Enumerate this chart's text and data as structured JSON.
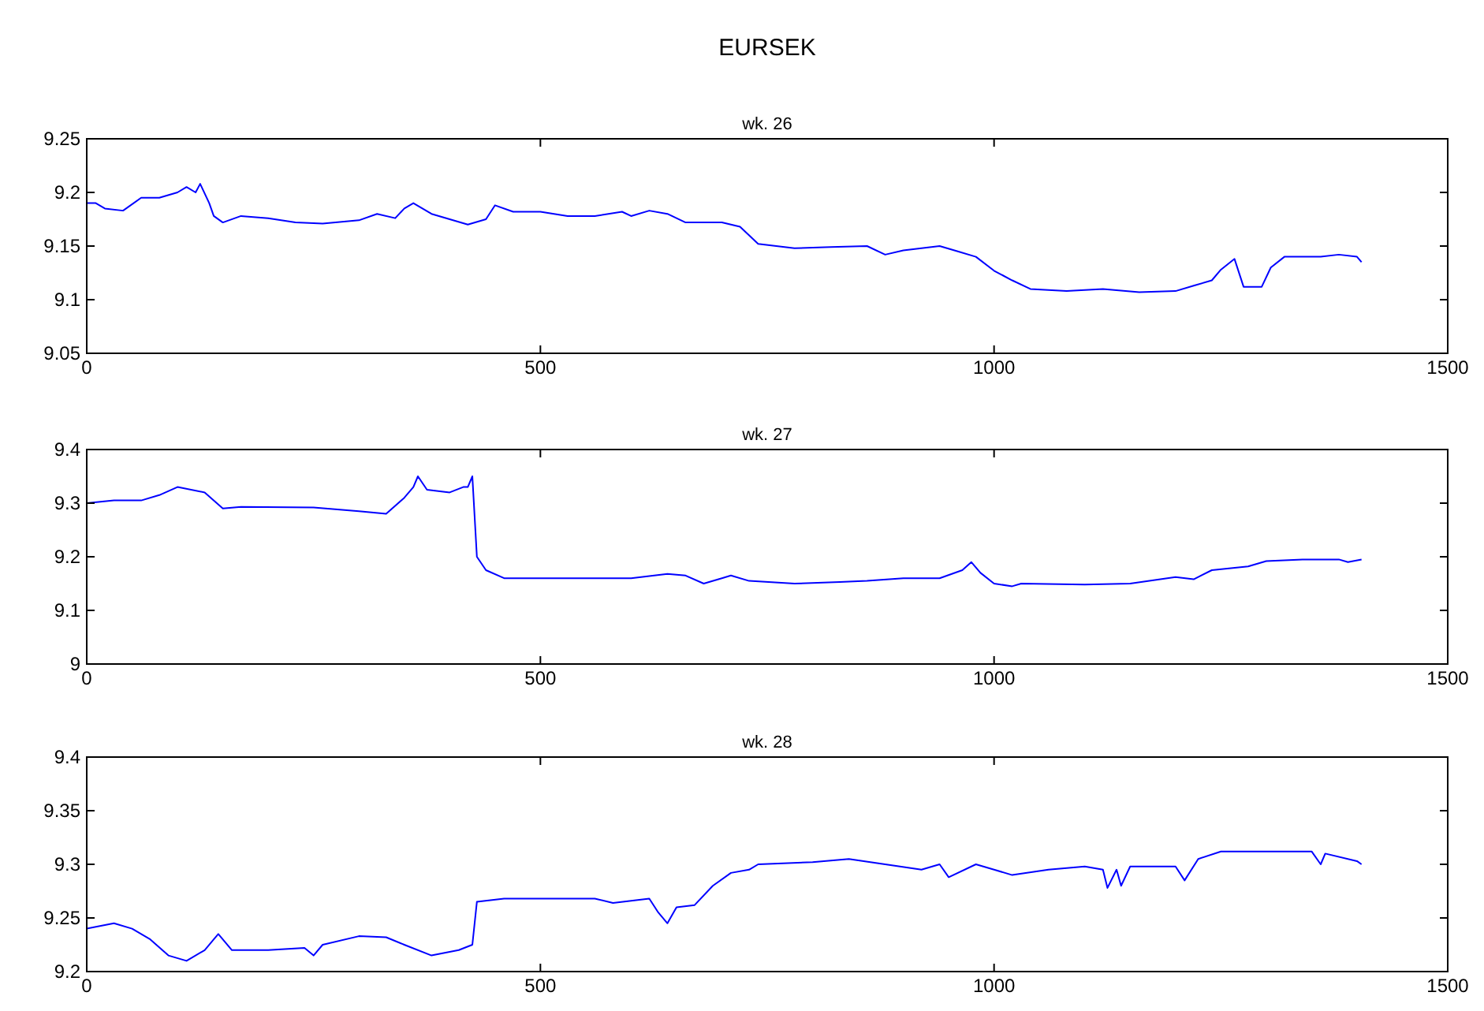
{
  "chart_data": [
    {
      "type": "line",
      "title": "EURSEK",
      "subtitle": "wk. 26",
      "xlim": [
        0,
        1500
      ],
      "xticks": [
        0,
        500,
        1000,
        1500
      ],
      "ylim": [
        9.05,
        9.25
      ],
      "yticks": [
        9.05,
        9.1,
        9.15,
        9.2,
        9.25
      ],
      "grid": false,
      "series": [
        {
          "color": "#0000ff",
          "x": [
            0,
            10,
            20,
            40,
            60,
            80,
            100,
            110,
            120,
            125,
            135,
            140,
            150,
            170,
            200,
            230,
            260,
            300,
            320,
            340,
            350,
            360,
            380,
            400,
            420,
            440,
            450,
            470,
            500,
            530,
            560,
            590,
            600,
            620,
            640,
            660,
            700,
            720,
            740,
            780,
            820,
            860,
            880,
            900,
            940,
            960,
            980,
            1000,
            1020,
            1040,
            1080,
            1120,
            1160,
            1200,
            1220,
            1240,
            1250,
            1265,
            1275,
            1295,
            1305,
            1320,
            1360,
            1380,
            1400,
            1405
          ],
          "values": [
            9.19,
            9.19,
            9.185,
            9.183,
            9.195,
            9.195,
            9.2,
            9.205,
            9.2,
            9.208,
            9.19,
            9.178,
            9.172,
            9.178,
            9.176,
            9.172,
            9.171,
            9.174,
            9.18,
            9.176,
            9.185,
            9.19,
            9.18,
            9.175,
            9.17,
            9.175,
            9.188,
            9.182,
            9.182,
            9.178,
            9.178,
            9.182,
            9.178,
            9.183,
            9.18,
            9.172,
            9.172,
            9.168,
            9.152,
            9.148,
            9.149,
            9.15,
            9.142,
            9.146,
            9.15,
            9.145,
            9.14,
            9.127,
            9.118,
            9.11,
            9.108,
            9.11,
            9.107,
            9.108,
            9.113,
            9.118,
            9.128,
            9.138,
            9.112,
            9.112,
            9.13,
            9.14,
            9.14,
            9.142,
            9.14,
            9.135
          ]
        }
      ]
    },
    {
      "type": "line",
      "title": "wk. 27",
      "xlim": [
        0,
        1500
      ],
      "xticks": [
        0,
        500,
        1000,
        1500
      ],
      "ylim": [
        9,
        9.4
      ],
      "yticks": [
        9,
        9.1,
        9.2,
        9.3,
        9.4
      ],
      "grid": false,
      "series": [
        {
          "color": "#0000ff",
          "x": [
            0,
            30,
            60,
            80,
            100,
            130,
            150,
            170,
            250,
            300,
            330,
            350,
            360,
            365,
            375,
            400,
            415,
            420,
            425,
            430,
            440,
            460,
            500,
            600,
            640,
            660,
            680,
            700,
            710,
            730,
            780,
            830,
            860,
            900,
            940,
            965,
            975,
            985,
            1000,
            1020,
            1030,
            1100,
            1150,
            1200,
            1220,
            1240,
            1280,
            1300,
            1340,
            1380,
            1390,
            1405
          ],
          "values": [
            9.3,
            9.305,
            9.305,
            9.315,
            9.33,
            9.32,
            9.29,
            9.293,
            9.292,
            9.285,
            9.28,
            9.31,
            9.33,
            9.35,
            9.325,
            9.32,
            9.33,
            9.33,
            9.35,
            9.2,
            9.175,
            9.16,
            9.16,
            9.16,
            9.168,
            9.165,
            9.15,
            9.16,
            9.165,
            9.155,
            9.15,
            9.153,
            9.155,
            9.16,
            9.16,
            9.175,
            9.19,
            9.17,
            9.15,
            9.145,
            9.15,
            9.148,
            9.15,
            9.162,
            9.158,
            9.175,
            9.182,
            9.192,
            9.195,
            9.195,
            9.19,
            9.195
          ]
        }
      ]
    },
    {
      "type": "line",
      "title": "wk. 28",
      "xlim": [
        0,
        1500
      ],
      "xticks": [
        0,
        500,
        1000,
        1500
      ],
      "ylim": [
        9.2,
        9.4
      ],
      "yticks": [
        9.2,
        9.25,
        9.3,
        9.35,
        9.4
      ],
      "grid": false,
      "series": [
        {
          "color": "#0000ff",
          "x": [
            0,
            30,
            50,
            70,
            90,
            110,
            130,
            140,
            145,
            160,
            200,
            240,
            250,
            260,
            300,
            330,
            350,
            380,
            410,
            425,
            430,
            460,
            500,
            560,
            580,
            600,
            620,
            630,
            640,
            650,
            670,
            690,
            710,
            730,
            740,
            800,
            840,
            880,
            920,
            940,
            950,
            980,
            1000,
            1020,
            1060,
            1100,
            1120,
            1125,
            1135,
            1140,
            1150,
            1200,
            1210,
            1225,
            1250,
            1300,
            1350,
            1360,
            1365,
            1400,
            1405
          ],
          "values": [
            9.24,
            9.245,
            9.24,
            9.23,
            9.215,
            9.21,
            9.22,
            9.23,
            9.235,
            9.22,
            9.22,
            9.222,
            9.215,
            9.225,
            9.233,
            9.232,
            9.225,
            9.215,
            9.22,
            9.225,
            9.265,
            9.268,
            9.268,
            9.268,
            9.264,
            9.266,
            9.268,
            9.255,
            9.245,
            9.26,
            9.262,
            9.28,
            9.292,
            9.295,
            9.3,
            9.302,
            9.305,
            9.3,
            9.295,
            9.3,
            9.288,
            9.3,
            9.295,
            9.29,
            9.295,
            9.298,
            9.295,
            9.278,
            9.295,
            9.28,
            9.298,
            9.298,
            9.285,
            9.305,
            9.312,
            9.312,
            9.312,
            9.3,
            9.31,
            9.303,
            9.3
          ]
        }
      ]
    }
  ]
}
